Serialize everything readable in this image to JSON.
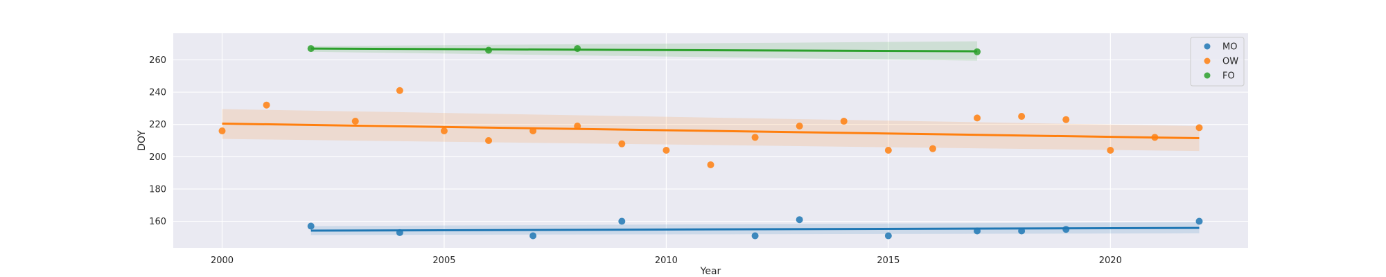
{
  "chart_data": {
    "type": "scatter",
    "xlabel": "Year",
    "ylabel": "DOY",
    "xlim": [
      1998.9,
      2023.1
    ],
    "ylim": [
      143.5,
      276.5
    ],
    "xticks": [
      2000,
      2005,
      2010,
      2015,
      2020
    ],
    "yticks": [
      160,
      180,
      200,
      220,
      240,
      260
    ],
    "grid": true,
    "legend_position": "top-right",
    "series": [
      {
        "name": "MO",
        "color": "#1f77b4",
        "x": [
          2002,
          2004,
          2007,
          2009,
          2012,
          2013,
          2015,
          2017,
          2018,
          2019,
          2022
        ],
        "y": [
          157,
          153,
          151,
          160,
          151,
          161,
          151,
          154,
          154,
          155,
          160
        ],
        "trend": {
          "x": [
            2002,
            2022
          ],
          "y": [
            154.2,
            155.9
          ]
        },
        "band": {
          "x": [
            2002,
            2022
          ],
          "lower": [
            151.5,
            152.5
          ],
          "upper": [
            157.0,
            159.5
          ]
        }
      },
      {
        "name": "OW",
        "color": "#ff7f0e",
        "x": [
          2000,
          2001,
          2003,
          2004,
          2005,
          2006,
          2007,
          2008,
          2009,
          2010,
          2011,
          2012,
          2013,
          2014,
          2015,
          2016,
          2017,
          2018,
          2019,
          2020,
          2021,
          2022
        ],
        "y": [
          216,
          232,
          222,
          241,
          216,
          210,
          216,
          219,
          208,
          204,
          195,
          212,
          219,
          222,
          204,
          205,
          224,
          225,
          223,
          204,
          212,
          218
        ],
        "trend": {
          "x": [
            2000,
            2022
          ],
          "y": [
            220.5,
            211.5
          ]
        },
        "band": {
          "x": [
            2000,
            2022
          ],
          "lower": [
            211.0,
            203.5
          ],
          "upper": [
            229.5,
            219.0
          ]
        }
      },
      {
        "name": "FO",
        "color": "#2ca02c",
        "x": [
          2002,
          2006,
          2008,
          2017
        ],
        "y": [
          267,
          266,
          267,
          265
        ],
        "trend": {
          "x": [
            2002,
            2017
          ],
          "y": [
            267.0,
            265.3
          ]
        },
        "band": {
          "x": [
            2002,
            2017
          ],
          "lower": [
            265.0,
            259.5
          ],
          "upper": [
            268.5,
            271.5
          ]
        }
      }
    ]
  }
}
